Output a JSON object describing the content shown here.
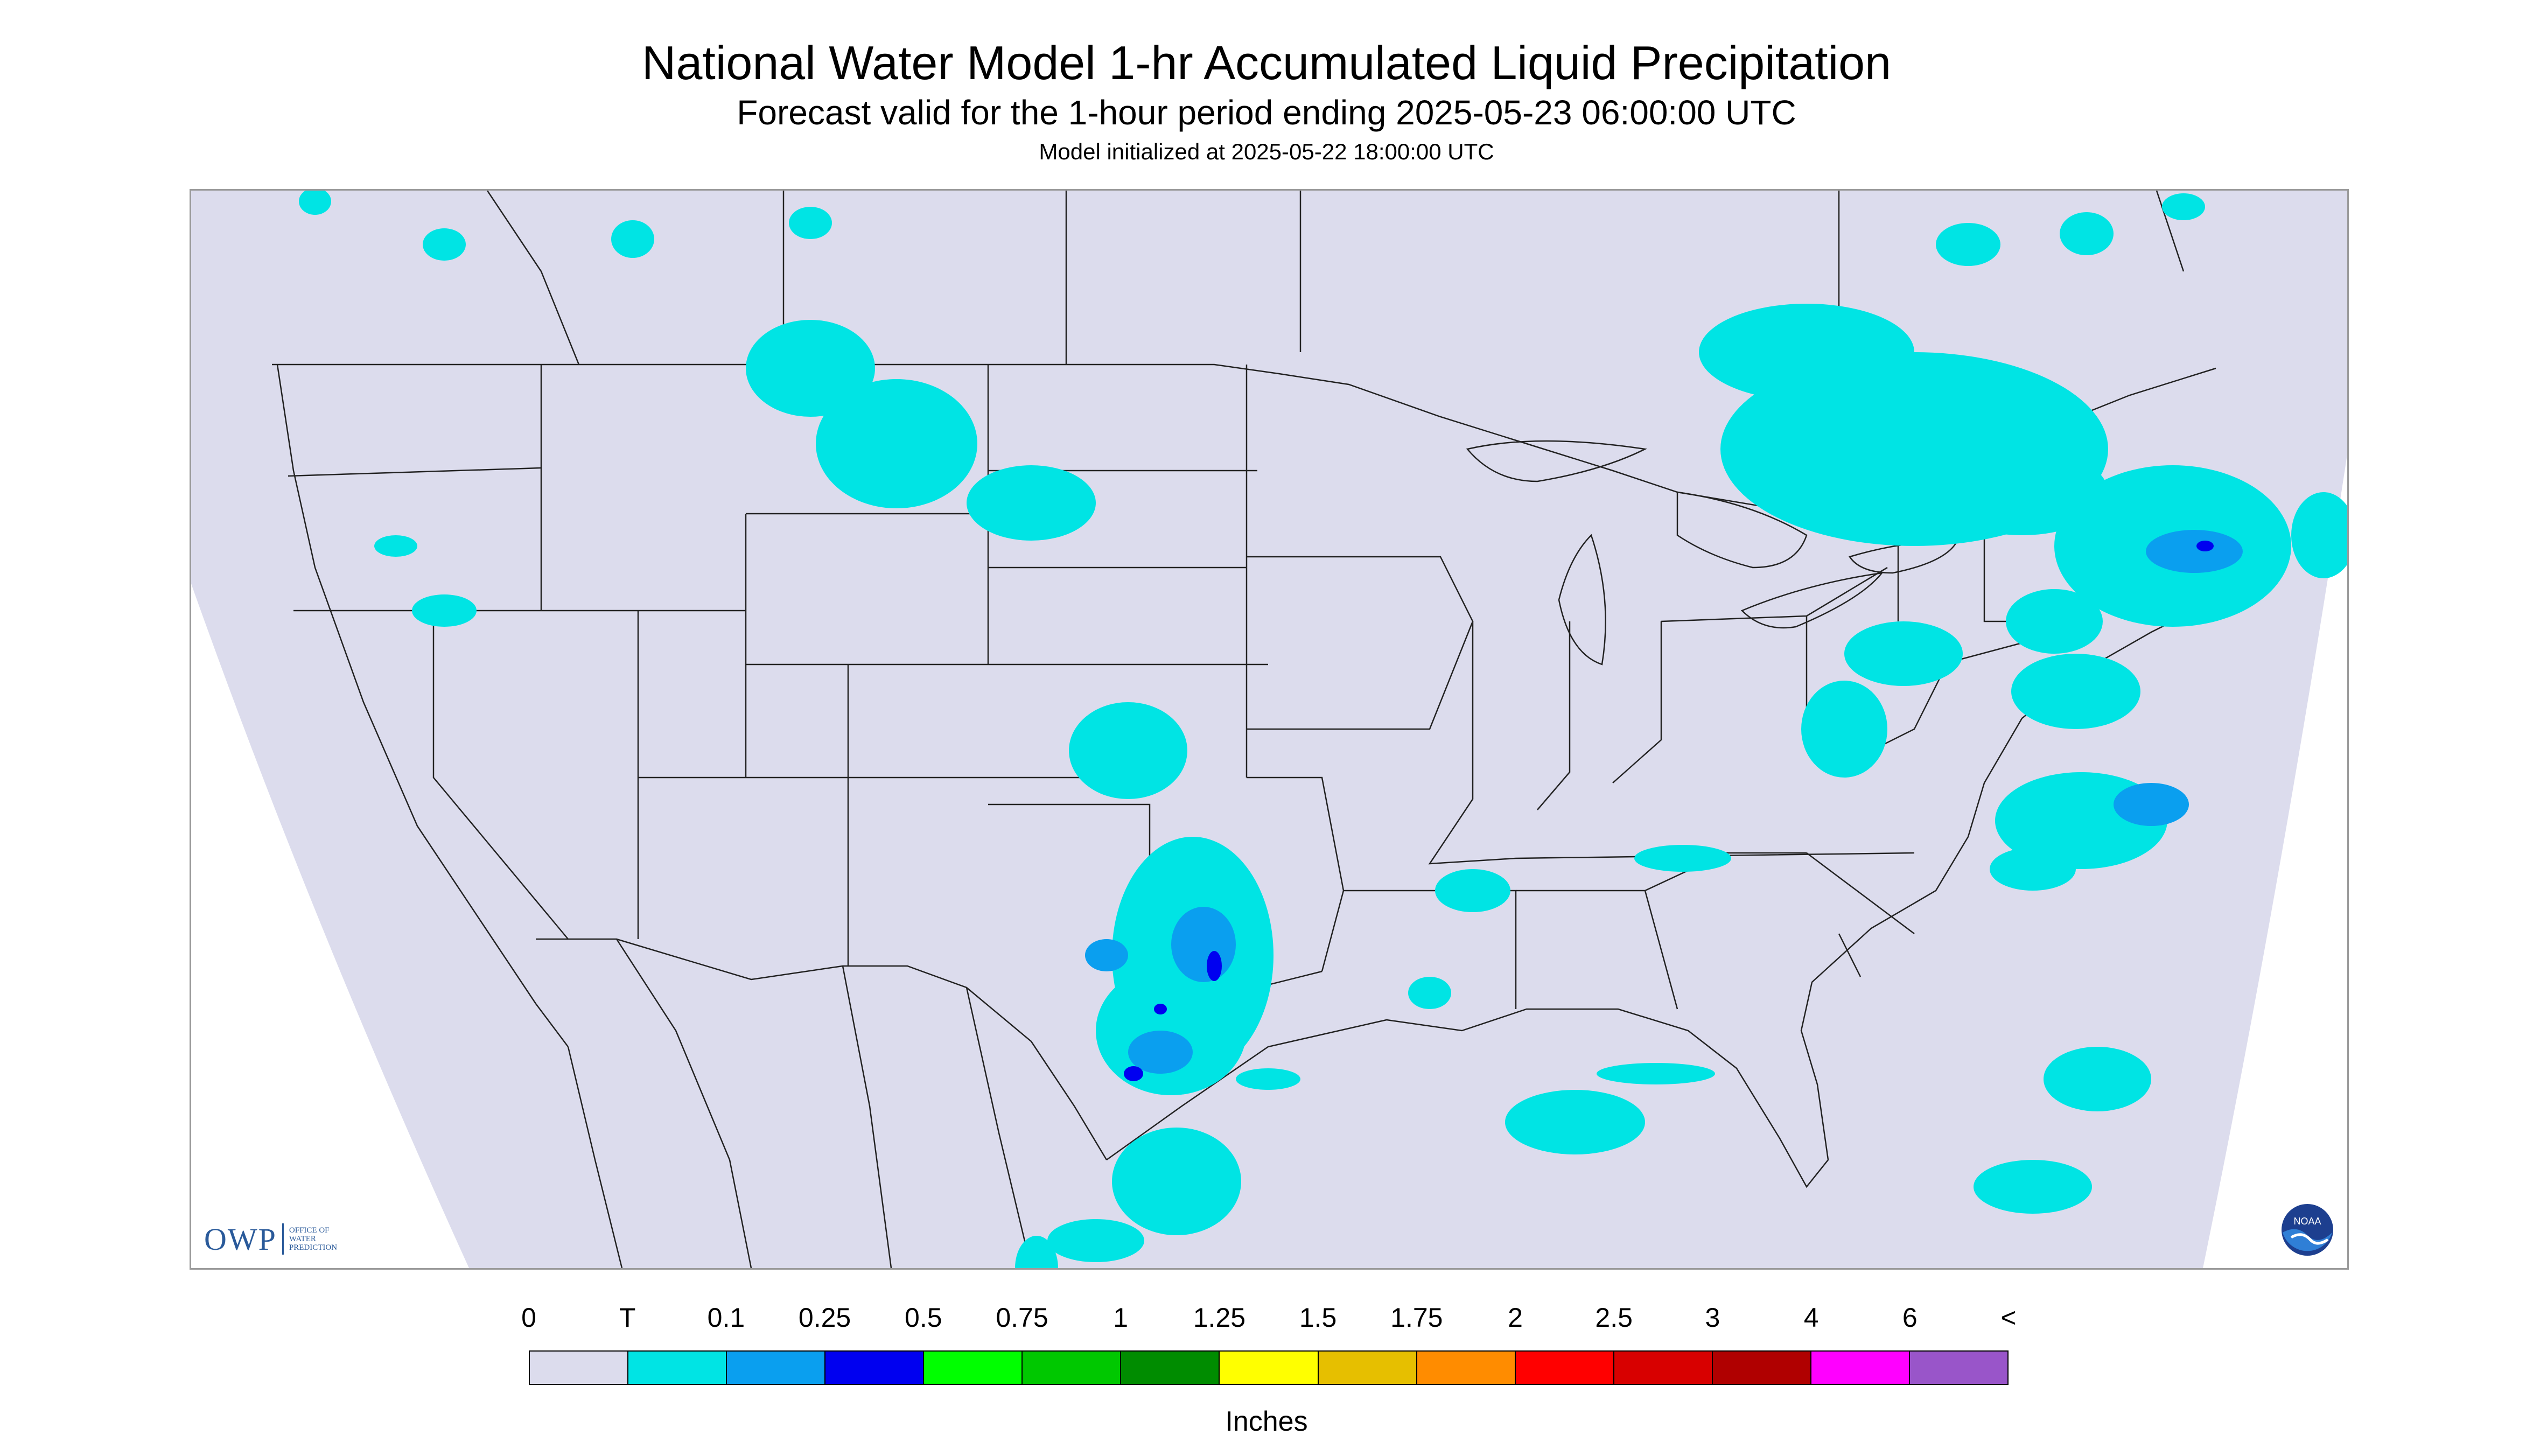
{
  "header": {
    "title": "National Water Model 1-hr Accumulated Liquid Precipitation",
    "subtitle": "Forecast valid for the 1-hour period ending 2025-05-23 06:00:00 UTC",
    "init_note": "Model initialized at 2025-05-22 18:00:00 UTC"
  },
  "map": {
    "background_color": "#dcdced",
    "outside_color": "#ffffff",
    "boundary_color": "#000000",
    "precip_colors": {
      "trace": "#00e4e4",
      "light": "#0a9fef",
      "moderate": "#0000f0"
    }
  },
  "logos": {
    "owp": {
      "mark": "OWP",
      "text_lines": [
        "OFFICE OF",
        "WATER",
        "PREDICTION"
      ]
    },
    "noaa": {
      "text": "NOAA",
      "icon": "noaa-logo-icon"
    }
  },
  "legend": {
    "tick_labels": [
      "0",
      "T",
      "0.1",
      "0.25",
      "0.5",
      "0.75",
      "1",
      "1.25",
      "1.5",
      "1.75",
      "2",
      "2.5",
      "3",
      "4",
      "6",
      "<"
    ],
    "colors": [
      "#dcdced",
      "#00e4e4",
      "#0a9fef",
      "#0000f0",
      "#00ff00",
      "#00c800",
      "#008c00",
      "#ffff00",
      "#e6bf00",
      "#ff8c00",
      "#ff0000",
      "#d80000",
      "#b00000",
      "#ff00ff",
      "#9955c9"
    ],
    "units": "Inches"
  }
}
